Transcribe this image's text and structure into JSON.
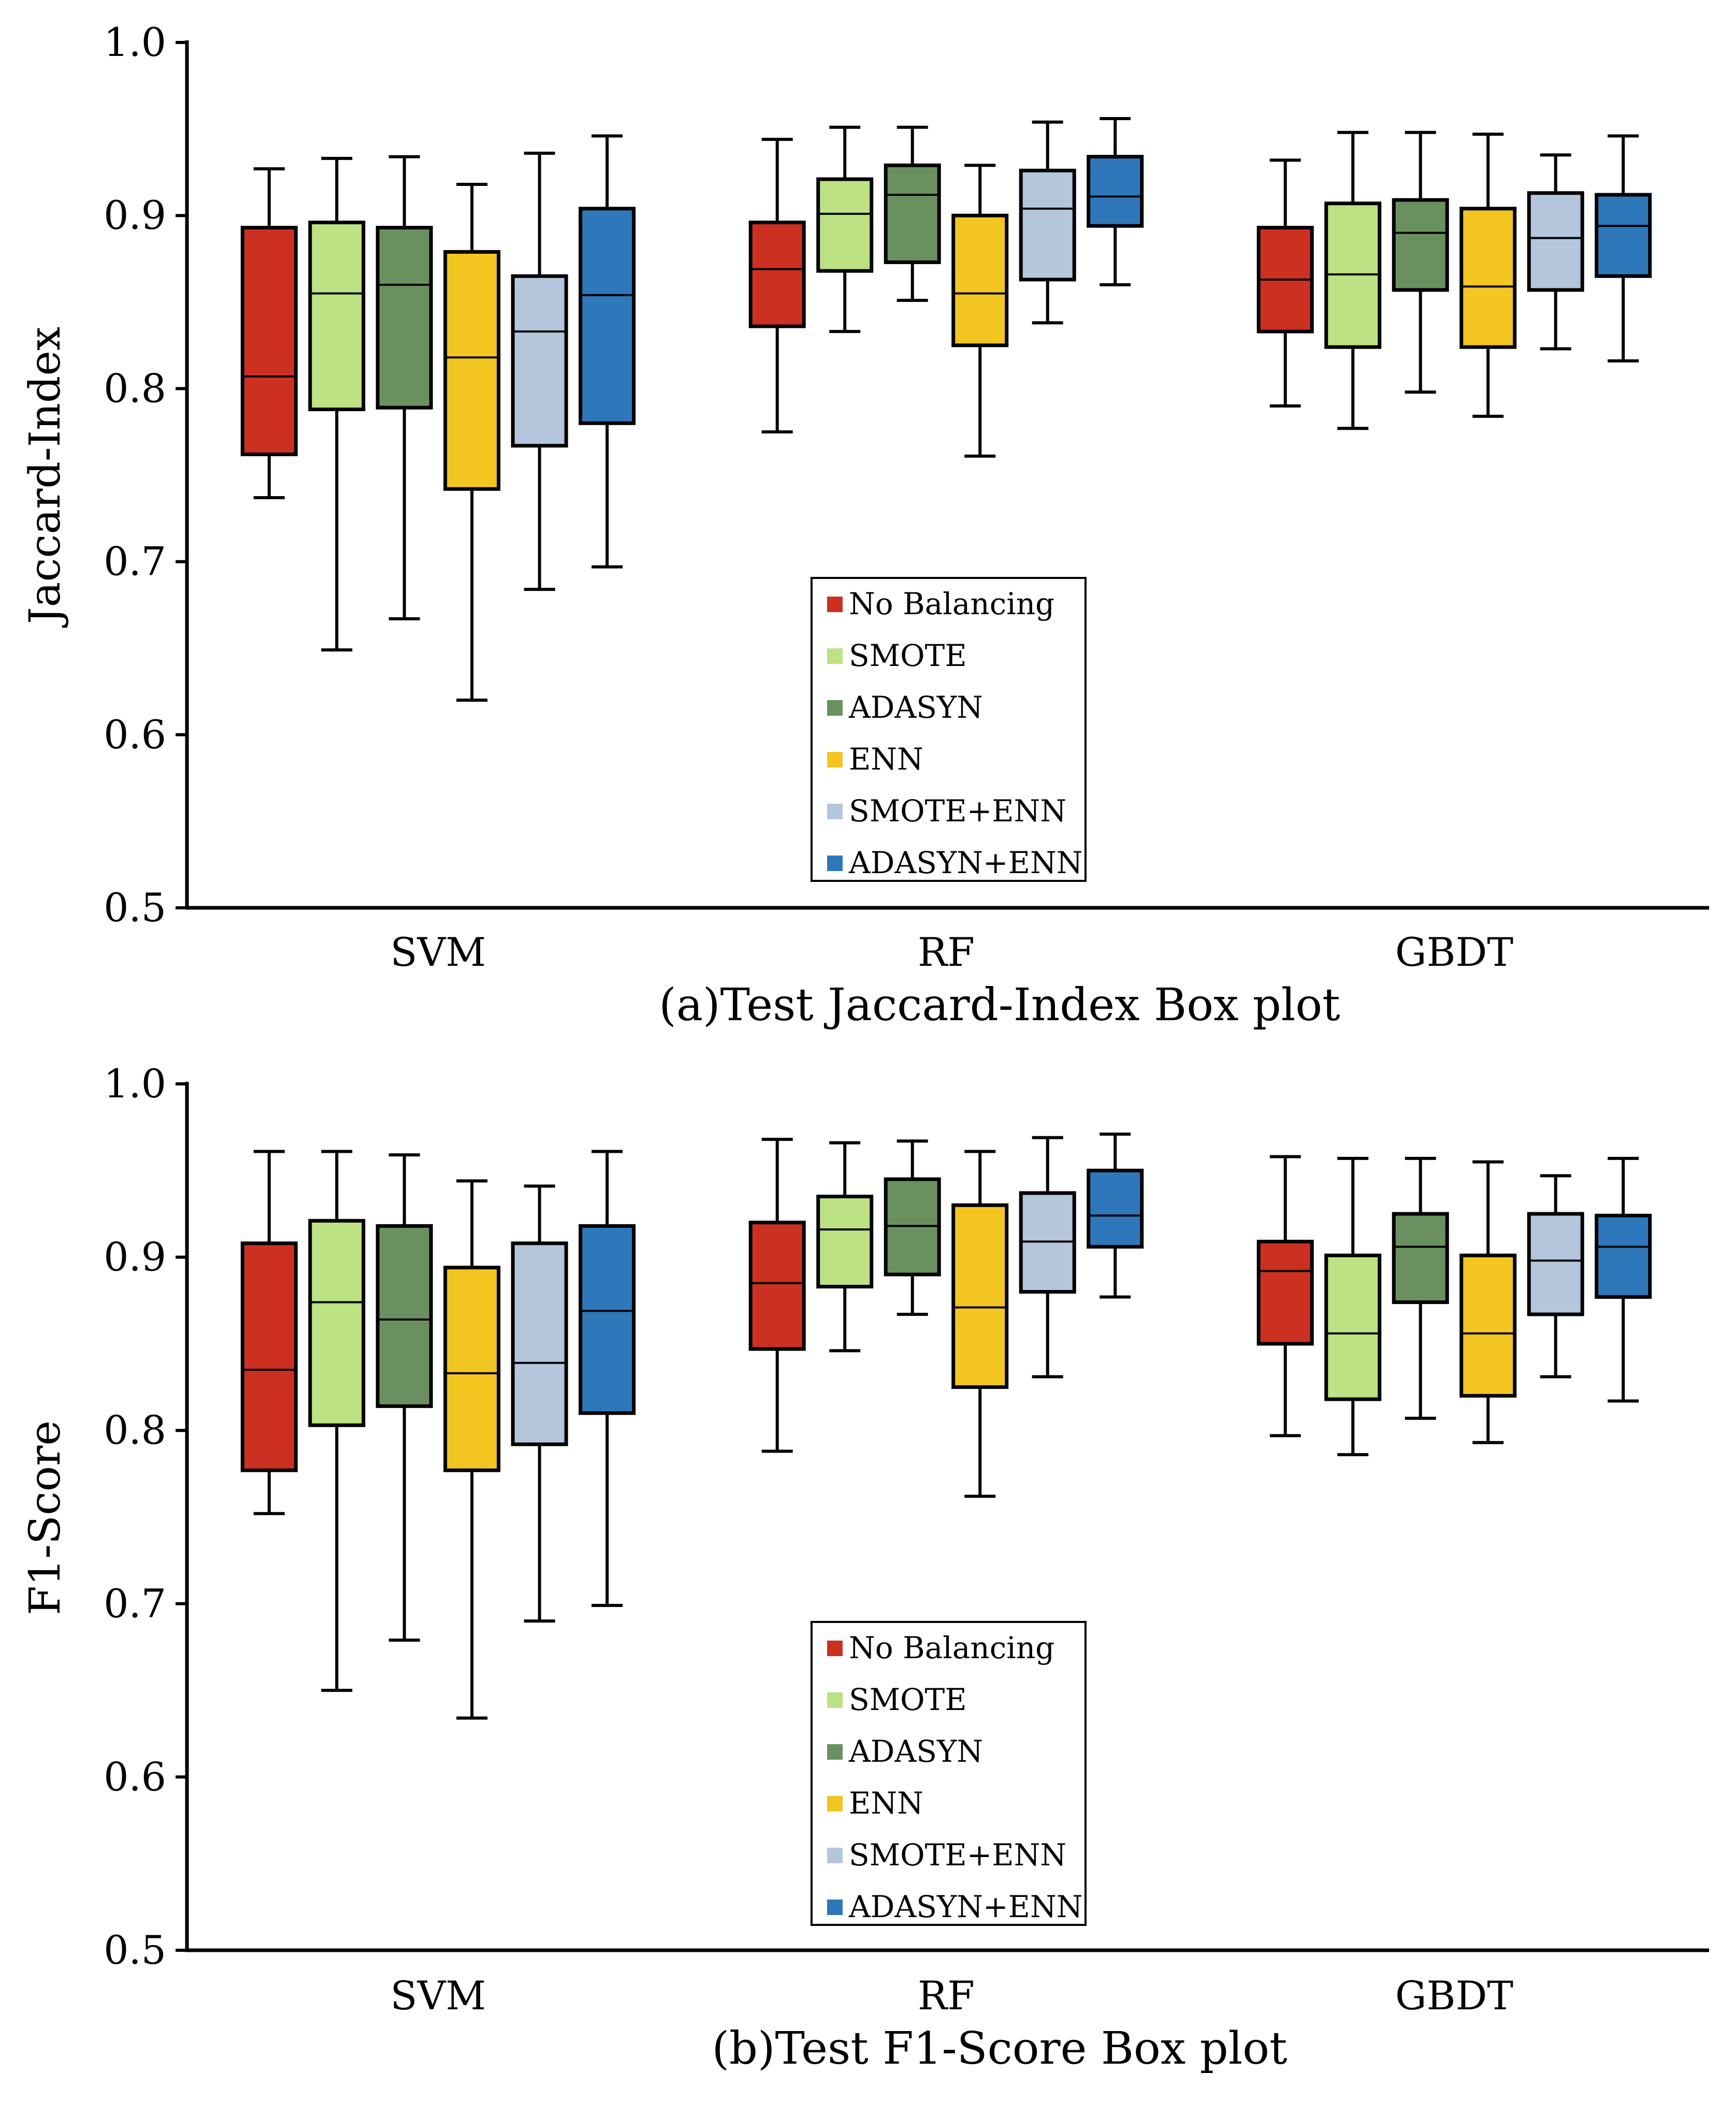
{
  "chart_data": [
    {
      "type": "box",
      "title": "(a)Test Jaccard-Index Box plot",
      "ylabel": "Jaccard-Index",
      "xlabel": "",
      "ylim": [
        0.5,
        1.0
      ],
      "yticks": [
        "0.5",
        "0.6",
        "0.7",
        "0.8",
        "0.9",
        "1.0"
      ],
      "categories": [
        "SVM",
        "RF",
        "GBDT"
      ],
      "legend_position": "bottom-center",
      "series": [
        {
          "name": "No Balancing",
          "color": "#cc3021",
          "boxes": [
            [
              0.737,
              0.762,
              0.807,
              0.893,
              0.927
            ],
            [
              0.775,
              0.836,
              0.869,
              0.896,
              0.944
            ],
            [
              0.79,
              0.833,
              0.863,
              0.893,
              0.932
            ]
          ]
        },
        {
          "name": "SMOTE",
          "color": "#bde283",
          "boxes": [
            [
              0.649,
              0.788,
              0.855,
              0.896,
              0.933
            ],
            [
              0.833,
              0.868,
              0.901,
              0.921,
              0.951
            ],
            [
              0.777,
              0.824,
              0.866,
              0.907,
              0.948
            ]
          ]
        },
        {
          "name": "ADASYN",
          "color": "#6b9060",
          "boxes": [
            [
              0.667,
              0.789,
              0.86,
              0.893,
              0.934
            ],
            [
              0.851,
              0.873,
              0.912,
              0.929,
              0.951
            ],
            [
              0.798,
              0.857,
              0.89,
              0.909,
              0.948
            ]
          ]
        },
        {
          "name": "ENN",
          "color": "#f2c521",
          "boxes": [
            [
              0.62,
              0.742,
              0.818,
              0.879,
              0.918
            ],
            [
              0.761,
              0.825,
              0.855,
              0.9,
              0.929
            ],
            [
              0.784,
              0.824,
              0.859,
              0.904,
              0.947
            ]
          ]
        },
        {
          "name": "SMOTE+ENN",
          "color": "#b4c6dc",
          "boxes": [
            [
              0.684,
              0.767,
              0.833,
              0.865,
              0.936
            ],
            [
              0.838,
              0.863,
              0.904,
              0.926,
              0.954
            ],
            [
              0.823,
              0.857,
              0.887,
              0.913,
              0.935
            ]
          ]
        },
        {
          "name": "ADASYN+ENN",
          "color": "#2e77bb",
          "boxes": [
            [
              0.697,
              0.78,
              0.854,
              0.904,
              0.946
            ],
            [
              0.86,
              0.894,
              0.911,
              0.934,
              0.956
            ],
            [
              0.816,
              0.865,
              0.894,
              0.912,
              0.946
            ]
          ]
        }
      ]
    },
    {
      "type": "box",
      "title": "(b)Test F1-Score Box plot",
      "ylabel": "F1-Score",
      "xlabel": "",
      "ylim": [
        0.5,
        1.0
      ],
      "yticks": [
        "0.5",
        "0.6",
        "0.7",
        "0.8",
        "0.9",
        "1.0"
      ],
      "categories": [
        "SVM",
        "RF",
        "GBDT"
      ],
      "legend_position": "bottom-center",
      "series": [
        {
          "name": "No Balancing",
          "color": "#cc3021",
          "boxes": [
            [
              0.752,
              0.777,
              0.835,
              0.908,
              0.961
            ],
            [
              0.788,
              0.847,
              0.885,
              0.92,
              0.968
            ],
            [
              0.797,
              0.85,
              0.892,
              0.909,
              0.958
            ]
          ]
        },
        {
          "name": "SMOTE",
          "color": "#bde283",
          "boxes": [
            [
              0.65,
              0.803,
              0.874,
              0.921,
              0.961
            ],
            [
              0.846,
              0.883,
              0.916,
              0.935,
              0.966
            ],
            [
              0.786,
              0.818,
              0.856,
              0.901,
              0.957
            ]
          ]
        },
        {
          "name": "ADASYN",
          "color": "#6b9060",
          "boxes": [
            [
              0.679,
              0.814,
              0.864,
              0.918,
              0.959
            ],
            [
              0.867,
              0.89,
              0.918,
              0.945,
              0.967
            ],
            [
              0.807,
              0.874,
              0.906,
              0.925,
              0.957
            ]
          ]
        },
        {
          "name": "ENN",
          "color": "#f2c521",
          "boxes": [
            [
              0.634,
              0.777,
              0.833,
              0.894,
              0.944
            ],
            [
              0.762,
              0.825,
              0.871,
              0.93,
              0.961
            ],
            [
              0.793,
              0.82,
              0.856,
              0.901,
              0.955
            ]
          ]
        },
        {
          "name": "SMOTE+ENN",
          "color": "#b4c6dc",
          "boxes": [
            [
              0.69,
              0.792,
              0.839,
              0.908,
              0.941
            ],
            [
              0.831,
              0.88,
              0.909,
              0.937,
              0.969
            ],
            [
              0.831,
              0.867,
              0.898,
              0.925,
              0.947
            ]
          ]
        },
        {
          "name": "ADASYN+ENN",
          "color": "#2e77bb",
          "boxes": [
            [
              0.699,
              0.81,
              0.869,
              0.918,
              0.961
            ],
            [
              0.877,
              0.906,
              0.924,
              0.95,
              0.971
            ],
            [
              0.817,
              0.877,
              0.906,
              0.924,
              0.957
            ]
          ]
        }
      ]
    }
  ]
}
